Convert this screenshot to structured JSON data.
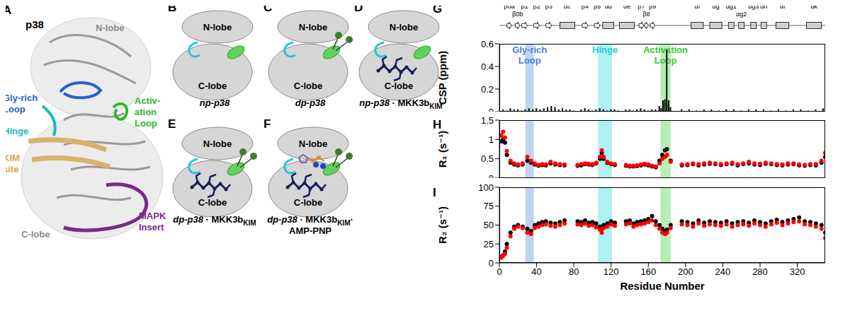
{
  "panel_A": {
    "panel": "A",
    "title": "p38",
    "labels": [
      {
        "lines": [
          "N-lobe"
        ],
        "color": "#8c8c8c"
      },
      {
        "lines": [
          "Gly-rich",
          "Loop"
        ],
        "color": "#2a5fd0"
      },
      {
        "lines": [
          "Hinge"
        ],
        "color": "#18b8b8"
      },
      {
        "lines": [
          "Activ-",
          "ation",
          "Loop"
        ],
        "color": "#2eb82e"
      },
      {
        "lines": [
          "KIM",
          "site"
        ],
        "color": "#d1a453"
      },
      {
        "lines": [
          "C-lobe"
        ],
        "color": "#8c8c8c"
      },
      {
        "lines": [
          "MAPK",
          "Insert"
        ],
        "color": "#7b2a8a"
      }
    ]
  },
  "cartoons": [
    {
      "panel": "B",
      "n_lobe": "N-lobe",
      "c_lobe": "C-lobe",
      "phosphorylated": false,
      "kim": false,
      "amp_pnp": false,
      "caption": [
        [
          {
            "text": "np-p38",
            "italic": true
          }
        ]
      ]
    },
    {
      "panel": "C",
      "n_lobe": "N-lobe",
      "c_lobe": "C-lobe",
      "phosphorylated": true,
      "kim": false,
      "amp_pnp": false,
      "caption": [
        [
          {
            "text": "dp-p38",
            "italic": true
          }
        ]
      ]
    },
    {
      "panel": "D",
      "n_lobe": "N-lobe",
      "c_lobe": "C-lobe",
      "phosphorylated": false,
      "kim": true,
      "amp_pnp": false,
      "caption": [
        [
          {
            "text": "np-p38",
            "italic": true
          },
          {
            "text": " · MKK3b"
          },
          {
            "text": "KIM",
            "sub": true
          }
        ]
      ]
    },
    {
      "panel": "E",
      "n_lobe": "N-lobe",
      "c_lobe": "C-lobe",
      "phosphorylated": true,
      "kim": true,
      "amp_pnp": false,
      "caption": [
        [
          {
            "text": "dp-p38",
            "italic": true
          },
          {
            "text": " · MKK3b"
          },
          {
            "text": "KIM",
            "sub": true
          }
        ]
      ]
    },
    {
      "panel": "F",
      "n_lobe": "N-lobe",
      "c_lobe": "C-lobe",
      "phosphorylated": true,
      "kim": true,
      "amp_pnp": true,
      "caption": [
        [
          {
            "text": "dp-p38",
            "italic": true
          },
          {
            "text": " · MKK3b"
          },
          {
            "text": "KIM",
            "sub": true
          },
          {
            "text": "·"
          }
        ],
        [
          {
            "text": "AMP-PNP"
          }
        ]
      ]
    }
  ],
  "secondary_structure": [
    {
      "label": "β0a",
      "type": "strand",
      "range": [
        8,
        13
      ]
    },
    {
      "label": "β0b",
      "type": "strand",
      "range": [
        17,
        22
      ]
    },
    {
      "label": "β1",
      "type": "strand",
      "range": [
        24,
        30
      ]
    },
    {
      "label": "β2",
      "type": "strand",
      "range": [
        37,
        43
      ]
    },
    {
      "label": "β3",
      "type": "strand",
      "range": [
        50,
        56
      ]
    },
    {
      "label": "αc",
      "type": "helix",
      "range": [
        65,
        81
      ]
    },
    {
      "label": "β4",
      "type": "strand",
      "range": [
        89,
        95
      ]
    },
    {
      "label": "β5",
      "type": "strand",
      "range": [
        102,
        108
      ]
    },
    {
      "label": "αd",
      "type": "helix",
      "range": [
        111,
        123
      ]
    },
    {
      "label": "αe",
      "type": "helix",
      "range": [
        129,
        145
      ]
    },
    {
      "label": "β7",
      "type": "strand",
      "range": [
        150,
        155
      ]
    },
    {
      "label": "β8",
      "type": "strand",
      "range": [
        156,
        160
      ]
    },
    {
      "label": "β9",
      "type": "strand",
      "range": [
        162,
        167
      ]
    },
    {
      "label": "αf",
      "type": "helix",
      "range": [
        206,
        219
      ]
    },
    {
      "label": "αg",
      "type": "helix",
      "range": [
        226,
        239
      ]
    },
    {
      "label": "αg1",
      "type": "helix",
      "range": [
        246,
        252
      ]
    },
    {
      "label": "αg2",
      "type": "helix",
      "range": [
        257,
        263
      ]
    },
    {
      "label": "αg3",
      "type": "helix",
      "range": [
        270,
        276
      ]
    },
    {
      "label": "αh",
      "type": "helix",
      "range": [
        281,
        287
      ]
    },
    {
      "label": "αi",
      "type": "helix",
      "range": [
        297,
        311
      ]
    },
    {
      "label": "αk",
      "type": "helix",
      "range": [
        330,
        346
      ]
    }
  ],
  "regions": [
    {
      "label": "Gly-rich Loop",
      "range": [
        28,
        37
      ],
      "color": "#4a7ee0"
    },
    {
      "label": "Hinge",
      "range": [
        106,
        121
      ],
      "color": "#19d3d3"
    },
    {
      "label": "Activation Loop",
      "range": [
        173,
        184
      ],
      "color": "#2fcf2f"
    }
  ],
  "chart_data": [
    {
      "panel": "G",
      "type": "bar",
      "ylabel": "CSP (ppm)",
      "x": [
        4,
        8,
        12,
        16,
        20,
        24,
        28,
        32,
        36,
        40,
        44,
        48,
        52,
        56,
        60,
        64,
        68,
        72,
        76,
        80,
        88,
        92,
        96,
        100,
        104,
        108,
        112,
        116,
        120,
        124,
        128,
        136,
        140,
        144,
        148,
        152,
        156,
        160,
        164,
        168,
        172,
        174,
        176,
        178,
        180,
        182,
        184,
        196,
        204,
        212,
        220,
        228,
        236,
        244,
        252,
        260,
        268,
        276,
        284,
        292,
        300,
        308,
        316,
        324,
        332,
        340,
        348
      ],
      "values": [
        0.02,
        0.01,
        0.03,
        0.02,
        0.02,
        0.01,
        0.02,
        0.03,
        0.02,
        0.03,
        0.02,
        0.03,
        0.04,
        0.05,
        0.04,
        0.02,
        0.03,
        0.02,
        0.02,
        0.01,
        0.02,
        0.03,
        0.02,
        0.01,
        0.02,
        0.03,
        0.02,
        0.01,
        0.02,
        0.02,
        0.01,
        0.02,
        0.02,
        0.01,
        0.02,
        0.03,
        0.02,
        0.01,
        0.02,
        0.02,
        0.05,
        0.03,
        0.1,
        0.11,
        0.55,
        0.1,
        0.04,
        0.02,
        0.02,
        0.01,
        0.02,
        0.02,
        0.01,
        0.02,
        0.02,
        0.01,
        0.02,
        0.02,
        0.02,
        0.01,
        0.02,
        0.01,
        0.02,
        0.02,
        0.01,
        0.02,
        0.03
      ],
      "color": "#000000",
      "xlim": [
        0,
        350
      ],
      "ylim": [
        0,
        0.6
      ],
      "yticks": [
        0,
        0.2,
        0.4,
        0.6
      ],
      "tick_labels": "y"
    },
    {
      "panel": "H",
      "type": "scatter",
      "ylabel": "R₁ (s⁻¹)",
      "x": [
        2,
        4,
        6,
        8,
        12,
        16,
        20,
        25,
        30,
        34,
        38,
        42,
        46,
        50,
        55,
        60,
        65,
        70,
        84,
        88,
        92,
        96,
        100,
        104,
        108,
        110,
        112,
        116,
        120,
        124,
        136,
        140,
        144,
        148,
        152,
        156,
        160,
        164,
        168,
        172,
        175,
        178,
        180,
        184,
        196,
        202,
        208,
        214,
        220,
        226,
        232,
        238,
        244,
        250,
        256,
        262,
        268,
        274,
        280,
        286,
        292,
        298,
        304,
        310,
        316,
        322,
        328,
        334,
        340,
        346,
        350
      ],
      "series": [
        {
          "color": "#000000",
          "marker": "circle",
          "values": [
            0.95,
            1.0,
            0.92,
            0.6,
            0.4,
            0.35,
            0.33,
            0.35,
            0.45,
            0.4,
            0.35,
            0.32,
            0.34,
            0.33,
            0.38,
            0.35,
            0.34,
            0.33,
            0.32,
            0.33,
            0.36,
            0.35,
            0.34,
            0.38,
            0.5,
            0.65,
            0.5,
            0.4,
            0.36,
            0.34,
            0.32,
            0.3,
            0.3,
            0.31,
            0.33,
            0.35,
            0.33,
            0.3,
            0.28,
            0.45,
            0.6,
            0.72,
            0.75,
            0.45,
            0.33,
            0.34,
            0.36,
            0.33,
            0.35,
            0.37,
            0.36,
            0.34,
            0.36,
            0.37,
            0.33,
            0.36,
            0.38,
            0.35,
            0.34,
            0.37,
            0.36,
            0.34,
            0.33,
            0.35,
            0.36,
            0.33,
            0.32,
            0.34,
            0.33,
            0.4,
            0.55
          ]
        },
        {
          "color": "#ff0000",
          "marker": "circle",
          "values": [
            1.1,
            1.2,
            1.05,
            0.7,
            0.45,
            0.38,
            0.35,
            0.38,
            0.55,
            0.45,
            0.38,
            0.34,
            0.36,
            0.35,
            0.42,
            0.38,
            0.36,
            0.35,
            0.34,
            0.36,
            0.38,
            0.37,
            0.36,
            0.4,
            0.55,
            0.72,
            0.55,
            0.42,
            0.38,
            0.36,
            0.34,
            0.32,
            0.32,
            0.33,
            0.35,
            0.37,
            0.35,
            0.32,
            0.3,
            0.38,
            0.5,
            0.55,
            0.6,
            0.42,
            0.35,
            0.36,
            0.38,
            0.36,
            0.38,
            0.4,
            0.38,
            0.36,
            0.38,
            0.4,
            0.36,
            0.38,
            0.42,
            0.38,
            0.37,
            0.4,
            0.38,
            0.36,
            0.35,
            0.38,
            0.38,
            0.35,
            0.34,
            0.36,
            0.36,
            0.45,
            0.65
          ]
        }
      ],
      "xlim": [
        0,
        350
      ],
      "ylim": [
        0,
        1.5
      ],
      "yticks": [
        0,
        0.5,
        1,
        1.5
      ],
      "tick_labels": "y"
    },
    {
      "panel": "I",
      "type": "scatter",
      "ylabel": "R₂ (s⁻¹)",
      "xlabel": "Residue Number",
      "x": [
        2,
        4,
        6,
        8,
        12,
        16,
        20,
        25,
        30,
        34,
        38,
        42,
        46,
        50,
        55,
        60,
        65,
        70,
        84,
        88,
        92,
        96,
        100,
        104,
        108,
        110,
        112,
        116,
        120,
        124,
        136,
        140,
        144,
        148,
        152,
        156,
        160,
        164,
        168,
        172,
        175,
        178,
        180,
        184,
        196,
        202,
        208,
        214,
        220,
        226,
        232,
        238,
        244,
        250,
        256,
        262,
        268,
        274,
        280,
        286,
        292,
        298,
        304,
        310,
        316,
        322,
        328,
        334,
        340,
        346,
        350
      ],
      "series": [
        {
          "color": "#000000",
          "marker": "circle",
          "values": [
            8,
            10,
            15,
            25,
            40,
            48,
            50,
            48,
            45,
            42,
            50,
            52,
            54,
            55,
            53,
            52,
            54,
            56,
            55,
            54,
            56,
            53,
            54,
            52,
            48,
            45,
            50,
            52,
            55,
            53,
            55,
            56,
            52,
            54,
            55,
            56,
            58,
            62,
            55,
            50,
            45,
            42,
            44,
            50,
            55,
            54,
            52,
            56,
            53,
            55,
            54,
            53,
            55,
            52,
            54,
            55,
            53,
            56,
            54,
            52,
            55,
            57,
            54,
            56,
            58,
            60,
            55,
            54,
            52,
            50,
            40
          ]
        },
        {
          "color": "#ff0000",
          "marker": "circle",
          "values": [
            7,
            9,
            12,
            20,
            35,
            45,
            48,
            46,
            40,
            38,
            46,
            48,
            50,
            51,
            49,
            48,
            50,
            52,
            51,
            50,
            52,
            49,
            50,
            47,
            44,
            40,
            46,
            48,
            51,
            49,
            51,
            52,
            48,
            50,
            51,
            52,
            54,
            56,
            50,
            45,
            40,
            38,
            40,
            46,
            51,
            50,
            48,
            52,
            49,
            51,
            50,
            49,
            51,
            48,
            50,
            51,
            49,
            52,
            50,
            48,
            51,
            53,
            50,
            52,
            54,
            55,
            51,
            50,
            48,
            45,
            33
          ]
        }
      ],
      "xlim": [
        0,
        350
      ],
      "ylim": [
        0,
        100
      ],
      "xticks": [
        0,
        40,
        80,
        120,
        160,
        200,
        240,
        280,
        320
      ],
      "yticks": [
        0,
        25,
        50,
        75,
        100
      ],
      "tick_labels": true
    }
  ]
}
